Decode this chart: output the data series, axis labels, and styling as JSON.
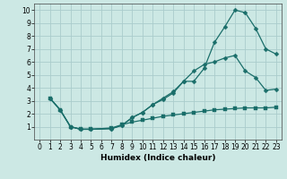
{
  "xlabel": "Humidex (Indice chaleur)",
  "bg_color": "#cce8e4",
  "grid_color": "#aacccc",
  "line_color": "#1a6e6a",
  "xlim": [
    -0.5,
    23.5
  ],
  "ylim": [
    0,
    10.5
  ],
  "xtick_vals": [
    0,
    1,
    2,
    3,
    4,
    5,
    6,
    7,
    8,
    9,
    10,
    11,
    12,
    13,
    14,
    15,
    16,
    17,
    18,
    19,
    20,
    21,
    22,
    23
  ],
  "ytick_vals": [
    1,
    2,
    3,
    4,
    5,
    6,
    7,
    8,
    9,
    10
  ],
  "line1_x": [
    1,
    2,
    3,
    4,
    5,
    7,
    8,
    9,
    10,
    11,
    12,
    13,
    14,
    15,
    16,
    17,
    18,
    19,
    20,
    21,
    22,
    23
  ],
  "line1_y": [
    3.2,
    2.3,
    1.0,
    0.8,
    0.8,
    0.85,
    1.1,
    1.7,
    2.1,
    2.7,
    3.1,
    3.6,
    4.5,
    4.5,
    5.5,
    7.5,
    8.7,
    10.0,
    9.8,
    8.6,
    7.0,
    6.6
  ],
  "line2_x": [
    1,
    2,
    3,
    4,
    5,
    7,
    8,
    9,
    10,
    11,
    12,
    13,
    14,
    15,
    16,
    17,
    18,
    19,
    20,
    21,
    22,
    23
  ],
  "line2_y": [
    3.2,
    2.3,
    1.0,
    0.8,
    0.8,
    0.85,
    1.1,
    1.7,
    2.1,
    2.7,
    3.2,
    3.7,
    4.5,
    5.3,
    5.8,
    6.0,
    6.3,
    6.5,
    5.3,
    4.8,
    3.8,
    3.9
  ],
  "line3_x": [
    1,
    2,
    3,
    4,
    5,
    7,
    8,
    9,
    10,
    11,
    12,
    13,
    14,
    15,
    16,
    17,
    18,
    19,
    20,
    21,
    22,
    23
  ],
  "line3_y": [
    3.2,
    2.3,
    1.0,
    0.8,
    0.8,
    0.9,
    1.15,
    1.35,
    1.5,
    1.65,
    1.8,
    1.9,
    2.0,
    2.1,
    2.2,
    2.3,
    2.35,
    2.4,
    2.45,
    2.45,
    2.45,
    2.5
  ]
}
